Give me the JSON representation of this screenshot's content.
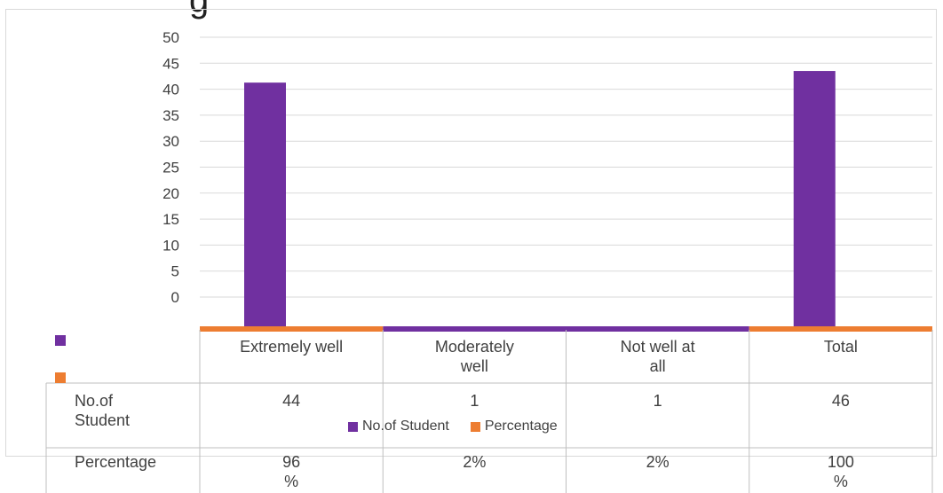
{
  "title_fragment": "g",
  "chart_data": {
    "type": "bar",
    "categories": [
      "Extremely well",
      "Moderately\nwell",
      "Not well at\nall",
      "Total"
    ],
    "series": [
      {
        "name": "No.of Student",
        "values": [
          44,
          1,
          1,
          46
        ],
        "color": "#7030a0"
      },
      {
        "name": "Percentage",
        "values": [
          0.96,
          0.02,
          0.02,
          1.0
        ],
        "color": "#ed7d31"
      }
    ],
    "ylim": [
      0,
      50
    ],
    "yticks": [
      0,
      5,
      10,
      15,
      20,
      25,
      30,
      35,
      40,
      45,
      50
    ],
    "grid": true,
    "legend_position": "bottom",
    "table": {
      "row_labels": [
        "No.of\nStudent",
        "Percentage"
      ],
      "rows": [
        [
          "44",
          "1",
          "1",
          "46"
        ],
        [
          "96\n%",
          "2%",
          "2%",
          "100\n%"
        ]
      ]
    }
  }
}
